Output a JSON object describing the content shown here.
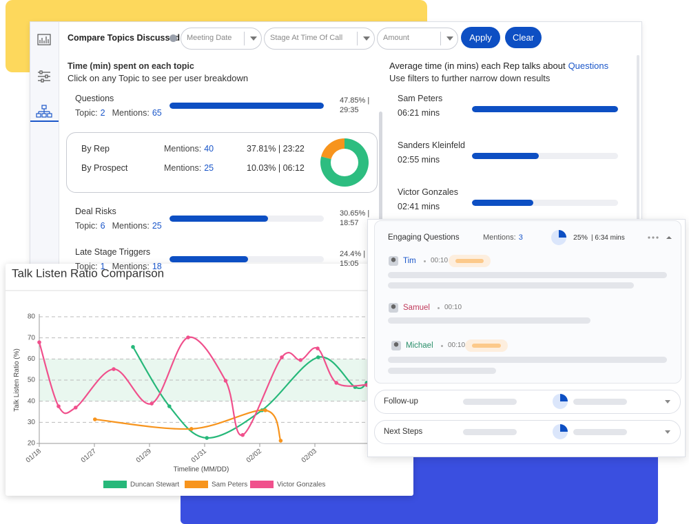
{
  "filter_bar": {
    "title": "Compare Topics Discussed",
    "filters": [
      "Meeting Date",
      "Stage At Time Of Call",
      "Amount"
    ],
    "apply": "Apply",
    "clear": "Clear"
  },
  "topics_panel": {
    "title": "Time (min) spent on each topic",
    "subtitle": "Click on any Topic to see per user breakdown",
    "topic_label": "Topic:",
    "mentions_label": "Mentions:",
    "topics": [
      {
        "name": "Questions",
        "topic_count": 2,
        "mentions": 65,
        "share": 47.85,
        "share_label": "47.85% |",
        "time": "29:35"
      },
      {
        "name": "Deal Risks",
        "topic_count": 6,
        "mentions": 25,
        "share": 30.65,
        "share_label": "30.65% |",
        "time": "18:57"
      },
      {
        "name": "Late Stage Triggers",
        "topic_count": 1,
        "mentions": 18,
        "share": 24.4,
        "share_label": "24.4% |",
        "time": "15:05"
      }
    ],
    "breakdown": [
      {
        "name": "By Rep",
        "mentions": 40,
        "share": 37.81,
        "share_label": "37.81% | 23:22",
        "color": "#2dbd80"
      },
      {
        "name": "By Prospect",
        "mentions": 25,
        "share": 10.03,
        "share_label": "10.03% | 06:12",
        "color": "#f7941d"
      }
    ]
  },
  "reps_panel": {
    "title": "Average time (in mins) each Rep talks about",
    "title_link": "Questions",
    "subtitle": "Use filters to further narrow down results",
    "reps": [
      {
        "name": "Sam Peters",
        "minutes": 6.35,
        "label": "06:21 mins"
      },
      {
        "name": "Sanders Kleinfeld",
        "minutes": 2.92,
        "label": "02:55 mins"
      },
      {
        "name": "Victor Gonzales",
        "minutes": 2.68,
        "label": "02:41 mins"
      }
    ]
  },
  "detail_panel": {
    "topic": "Engaging Questions",
    "mentions_label": "Mentions:",
    "mentions": 3,
    "share": 25,
    "share_label": "25%",
    "duration": "| 6:34 mins",
    "speakers": [
      {
        "name": "Tim",
        "time": "00:10"
      },
      {
        "name": "Samuel",
        "time": "00:10"
      },
      {
        "name": "Michael",
        "time": "00:10"
      }
    ],
    "collapsed": [
      "Follow-up",
      "Next Steps"
    ]
  },
  "chart_data": {
    "type": "line",
    "title": "Talk Listen Ratio Comparison",
    "x_label": "Timeline (MM/DD)",
    "y_label": "Talk Listen Ratio (%)",
    "xlim": [
      0,
      5.95
    ],
    "ylim": [
      20,
      80
    ],
    "xticks": [
      {
        "value": 0,
        "label": "01/18"
      },
      {
        "value": 1,
        "label": "01/27"
      },
      {
        "value": 2,
        "label": "01/29"
      },
      {
        "value": 3,
        "label": "01/31"
      },
      {
        "value": 4,
        "label": "02/02"
      },
      {
        "value": 5,
        "label": "02/03"
      }
    ],
    "yticks": [
      20,
      30,
      40,
      50,
      60,
      70,
      80
    ],
    "grid": true,
    "shaded_range": [
      40,
      60
    ],
    "legend": "bottom",
    "series": [
      {
        "name": "Duncan Stewart",
        "color": "#27b87a",
        "x": [
          1.7,
          2.36,
          3.04,
          4.04,
          5.06,
          5.73,
          5.94
        ],
        "values": [
          65.7,
          37.6,
          22.6,
          35.7,
          60.8,
          46.7,
          48.7
        ]
      },
      {
        "name": "Sam Peters",
        "color": "#f7941d",
        "x": [
          1.01,
          2.76,
          4.1,
          4.38
        ],
        "values": [
          31.4,
          26.9,
          35.7,
          21.3
        ]
      },
      {
        "name": "Victor Gonzales",
        "color": "#f0508c",
        "x": [
          0,
          0.35,
          0.66,
          1.35,
          2.04,
          2.7,
          3.38,
          3.69,
          4.4,
          4.74,
          5.05,
          5.39,
          5.94
        ],
        "values": [
          67.9,
          37.6,
          37,
          55.2,
          38.9,
          70.2,
          49.7,
          24,
          60.8,
          59.5,
          65,
          48.7,
          47.7
        ]
      }
    ]
  }
}
